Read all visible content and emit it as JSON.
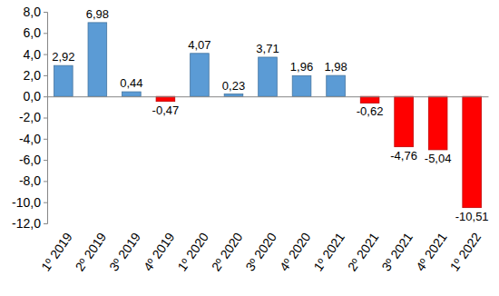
{
  "chart_data": {
    "type": "bar",
    "categories": [
      "1º 2019",
      "2º 2019",
      "3º 2019",
      "4º 2019",
      "1º 2020",
      "2º 2020",
      "3º 2020",
      "4º 2020",
      "1º 2021",
      "2º 2021",
      "3º 2021",
      "4º 2021",
      "1º 2022"
    ],
    "values": [
      2.92,
      6.98,
      0.44,
      -0.47,
      4.07,
      0.23,
      3.71,
      1.96,
      1.98,
      -0.62,
      -4.76,
      -5.04,
      -10.51
    ],
    "value_labels": [
      "2,92",
      "6,98",
      "0,44",
      "-0,47",
      "4,07",
      "0,23",
      "3,71",
      "1,96",
      "1,98",
      "-0,62",
      "-4,76",
      "-5,04",
      "-10,51"
    ],
    "colors": [
      "#5b9bd5",
      "#5b9bd5",
      "#5b9bd5",
      "#ff0000",
      "#5b9bd5",
      "#5b9bd5",
      "#5b9bd5",
      "#5b9bd5",
      "#5b9bd5",
      "#ff0000",
      "#ff0000",
      "#ff0000",
      "#ff0000"
    ],
    "ylim": [
      -12,
      8
    ],
    "yticks": [
      {
        "value": -12,
        "label": "-12,0"
      },
      {
        "value": -10,
        "label": "-10,0"
      },
      {
        "value": -8,
        "label": "-8,0"
      },
      {
        "value": -6,
        "label": "-6,0"
      },
      {
        "value": -4,
        "label": "-4,0"
      },
      {
        "value": -2,
        "label": "-2,0"
      },
      {
        "value": 0,
        "label": "0,0"
      },
      {
        "value": 2,
        "label": "2,0"
      },
      {
        "value": 4,
        "label": "4,0"
      },
      {
        "value": 6,
        "label": "6,0"
      },
      {
        "value": 8,
        "label": "8,0"
      }
    ],
    "grid": false,
    "data_labels": true
  }
}
